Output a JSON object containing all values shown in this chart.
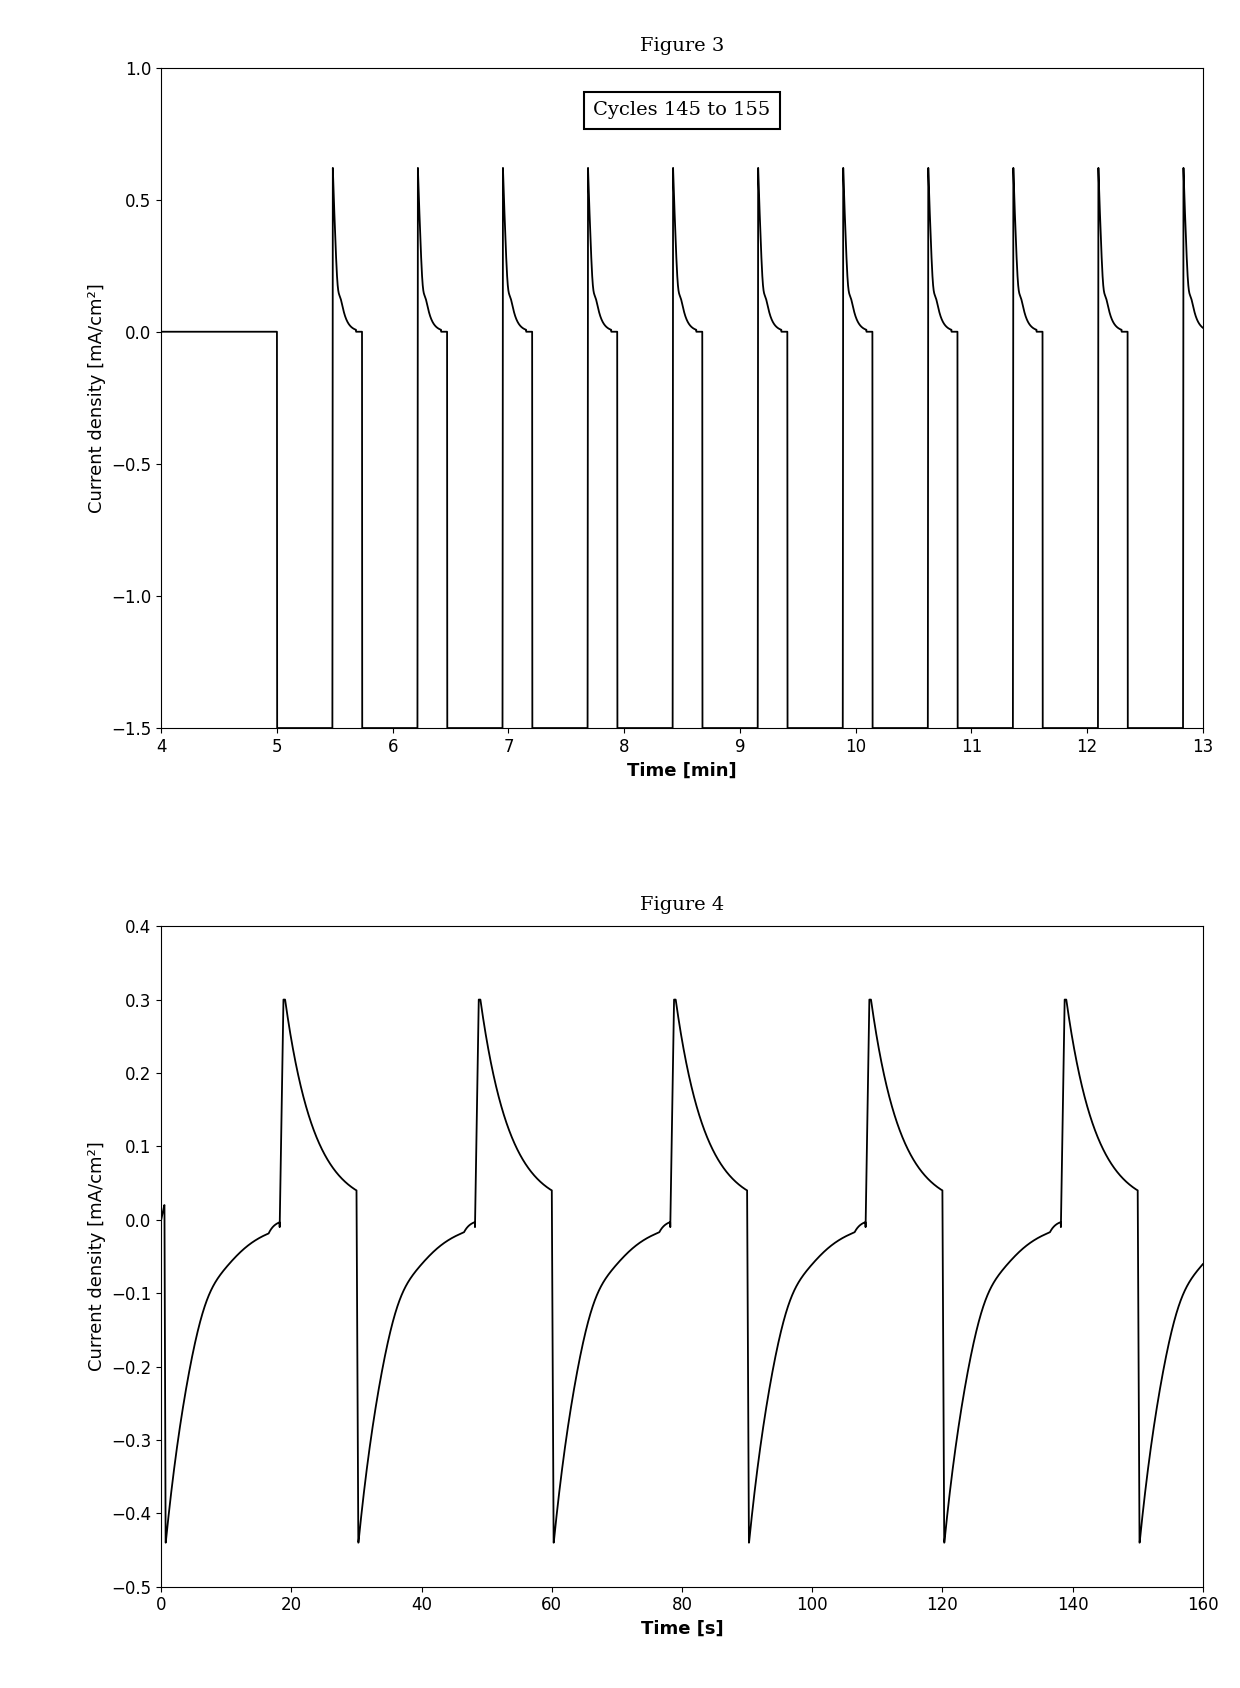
{
  "fig3_title": "Figure 3",
  "fig4_title": "Figure 4",
  "fig3_annotation": "Cycles 145 to 155",
  "fig3_xlabel": "Time [min]",
  "fig3_ylabel": "Current density [mA/cm²]",
  "fig3_xlim": [
    4,
    13
  ],
  "fig3_ylim": [
    -1.5,
    1.0
  ],
  "fig3_xticks": [
    4,
    5,
    6,
    7,
    8,
    9,
    10,
    11,
    12,
    13
  ],
  "fig3_yticks": [
    -1.5,
    -1.0,
    -0.5,
    0.0,
    0.5,
    1.0
  ],
  "fig4_xlabel": "Time [s]",
  "fig4_ylabel": "Current density [mA/cm²]",
  "fig4_xlim": [
    0,
    160
  ],
  "fig4_ylim": [
    -0.5,
    0.4
  ],
  "fig4_xticks": [
    0,
    20,
    40,
    60,
    80,
    100,
    120,
    140,
    160
  ],
  "fig4_yticks": [
    -0.5,
    -0.4,
    -0.3,
    -0.2,
    -0.1,
    0.0,
    0.1,
    0.2,
    0.3,
    0.4
  ],
  "line_color": "#000000",
  "line_width": 1.3,
  "background_color": "#ffffff",
  "title_fontsize": 14,
  "label_fontsize": 13,
  "tick_fontsize": 12,
  "annotation_fontsize": 14
}
